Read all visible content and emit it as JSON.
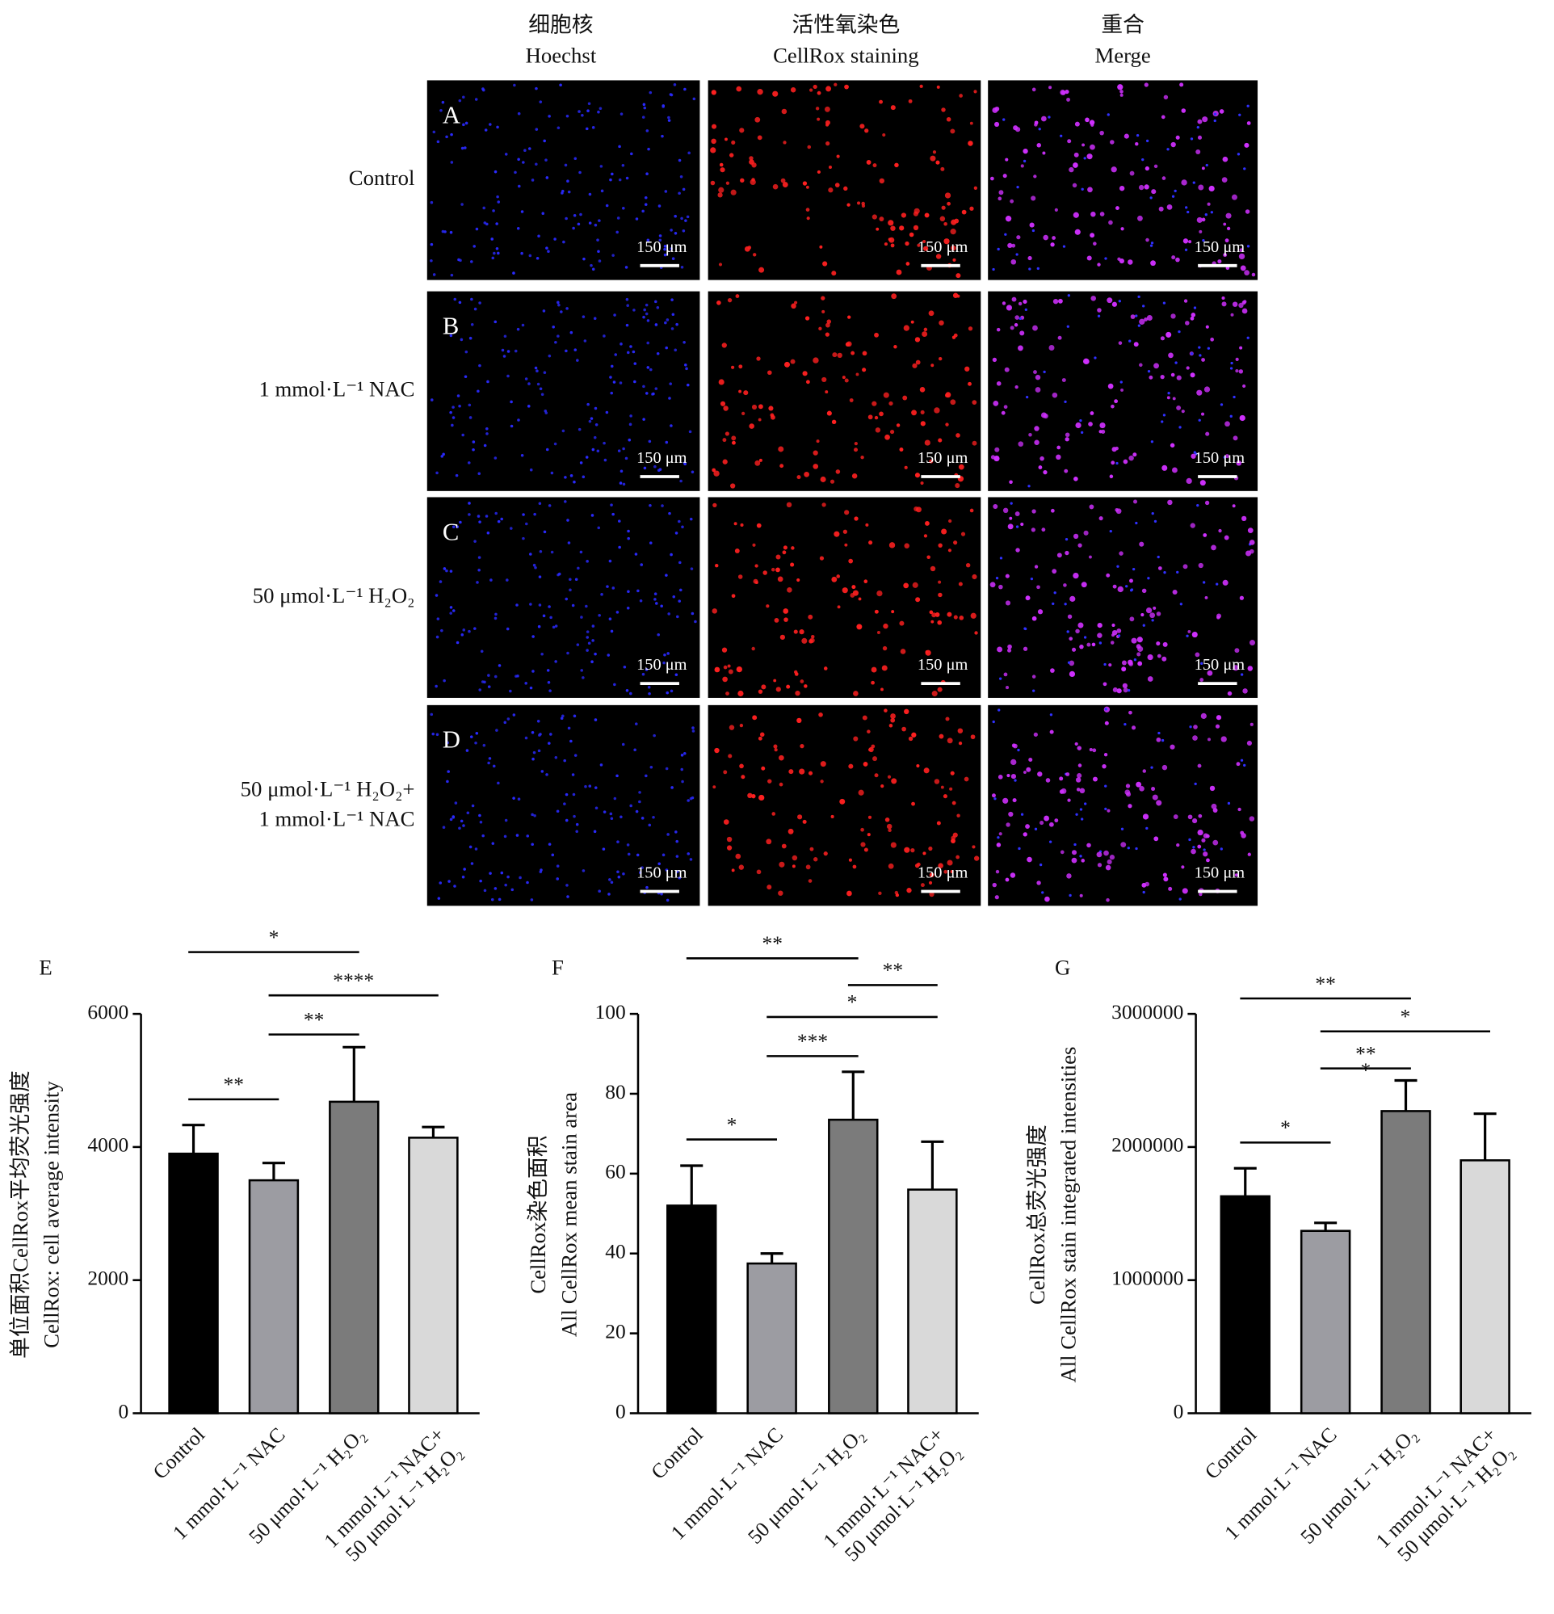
{
  "figure": {
    "column_headers": [
      [
        "细胞核",
        "Hoechst"
      ],
      [
        "活性氧染色",
        "CellRox staining"
      ],
      [
        "重合",
        "Merge"
      ]
    ],
    "row_labels": [
      [
        "Control"
      ],
      [
        "1 mmol·L⁻¹ NAC"
      ],
      [
        "50 μmol·L⁻¹ H₂O₂"
      ],
      [
        "50 μmol·L⁻¹ H₂O₂+",
        "1 mmol·L⁻¹ NAC"
      ]
    ],
    "panel_letters": [
      "A",
      "B",
      "C",
      "D"
    ],
    "scale_bar": "150 μm"
  },
  "chart_data": [
    {
      "type": "bar",
      "panel": "E",
      "ylabel": [
        "单位面积CellRox平均荧光强度",
        "CellRox: cell average intensity"
      ],
      "categories": [
        "Control",
        "1 mmol·L⁻¹ NAC",
        "50 μmol·L⁻¹ H₂O₂",
        "1 mmol·L⁻¹ NAC+\n50 μmol·L⁻¹ H₂O₂"
      ],
      "values": [
        3900,
        3500,
        4680,
        4140
      ],
      "errors": [
        430,
        260,
        820,
        160
      ],
      "colors": [
        "#000000",
        "#9c9ca2",
        "#7b7b7b",
        "#d9d9d9"
      ],
      "ylim": [
        0,
        6000
      ],
      "yticks": [
        0,
        2000,
        4000,
        6000
      ],
      "significance": [
        "*",
        "****",
        "**",
        "**"
      ]
    },
    {
      "type": "bar",
      "panel": "F",
      "ylabel": [
        "CellRox染色面积",
        "All CellRox mean stain area"
      ],
      "categories": [
        "Control",
        "1 mmol·L⁻¹ NAC",
        "50 μmol·L⁻¹ H₂O₂",
        "1 mmol·L⁻¹ NAC+\n50 μmol·L⁻¹ H₂O₂"
      ],
      "values": [
        52,
        37.5,
        73.5,
        56
      ],
      "errors": [
        10,
        2.5,
        12,
        12
      ],
      "colors": [
        "#000000",
        "#9c9ca2",
        "#7b7b7b",
        "#d9d9d9"
      ],
      "ylim": [
        0,
        100
      ],
      "yticks": [
        0,
        20,
        40,
        60,
        80,
        100
      ],
      "significance": [
        "**",
        "**",
        "*",
        "***",
        "*"
      ]
    },
    {
      "type": "bar",
      "panel": "G",
      "ylabel": [
        "CellRox总荧光强度",
        "All CellRox stain integrated intensities"
      ],
      "categories": [
        "Control",
        "1 mmol·L⁻¹ NAC",
        "50 μmol·L⁻¹ H₂O₂",
        "1 mmol·L⁻¹ NAC+\n50 μmol·L⁻¹ H₂O₂"
      ],
      "values": [
        1630000,
        1370000,
        2270000,
        1900000
      ],
      "errors": [
        210000,
        60000,
        230000,
        350000
      ],
      "colors": [
        "#000000",
        "#9c9ca2",
        "#7b7b7b",
        "#d9d9d9"
      ],
      "ylim": [
        0,
        3000000
      ],
      "yticks": [
        0,
        1000000,
        2000000,
        3000000
      ],
      "significance": [
        "**",
        "*",
        "**",
        "*",
        "*"
      ]
    }
  ]
}
